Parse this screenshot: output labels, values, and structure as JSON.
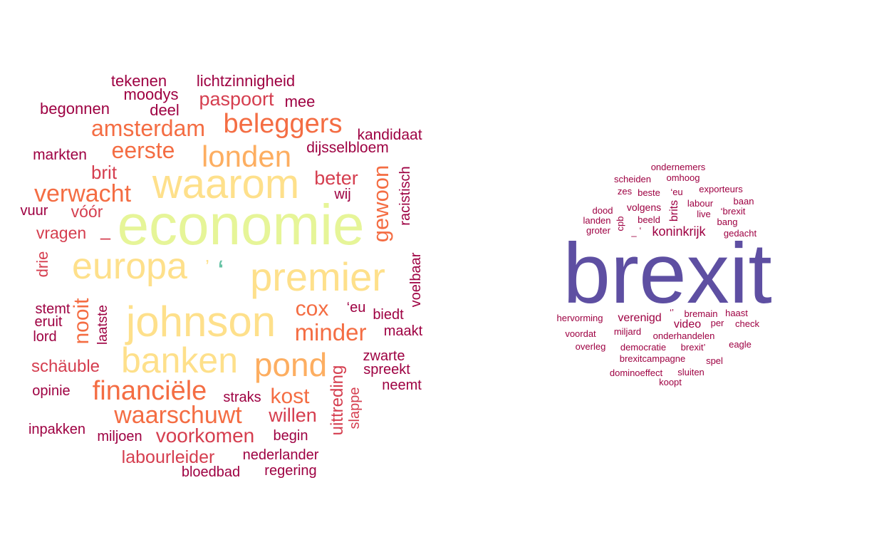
{
  "clouds": [
    {
      "name": "left-cloud",
      "words": [
        {
          "text": "economie",
          "color": "#e6f598"
        },
        {
          "text": "waarom",
          "color": "#fee08b"
        },
        {
          "text": "johnson",
          "color": "#fee08b"
        },
        {
          "text": "premier",
          "color": "#fee08b"
        },
        {
          "text": "banken",
          "color": "#fee08b"
        },
        {
          "text": "europa",
          "color": "#fee08b"
        },
        {
          "text": "pond",
          "color": "#fdae61"
        },
        {
          "text": "londen",
          "color": "#fdae61"
        },
        {
          "text": "beleggers",
          "color": "#f46d43"
        },
        {
          "text": "financiële",
          "color": "#f46d43"
        },
        {
          "text": "waarschuwt",
          "color": "#f46d43"
        },
        {
          "text": "amsterdam",
          "color": "#f46d43"
        },
        {
          "text": "eerste",
          "color": "#f46d43"
        },
        {
          "text": "verwacht",
          "color": "#f46d43"
        },
        {
          "text": "minder",
          "color": "#f46d43"
        },
        {
          "text": "gewoon",
          "color": "#f46d43"
        },
        {
          "text": "kost",
          "color": "#f46d43"
        },
        {
          "text": "cox",
          "color": "#f46d43"
        },
        {
          "text": "nooit",
          "color": "#f46d43"
        },
        {
          "text": "voorkomen",
          "color": "#d53e4f"
        },
        {
          "text": "beter",
          "color": "#d53e4f"
        },
        {
          "text": "willen",
          "color": "#d53e4f"
        },
        {
          "text": "paspoort",
          "color": "#d53e4f"
        },
        {
          "text": "brit",
          "color": "#d53e4f"
        },
        {
          "text": "labourleider",
          "color": "#d53e4f"
        },
        {
          "text": "uittreding",
          "color": "#d53e4f"
        },
        {
          "text": "schäuble",
          "color": "#d53e4f"
        },
        {
          "text": "vragen",
          "color": "#d53e4f"
        },
        {
          "text": "vóór",
          "color": "#d53e4f"
        },
        {
          "text": "drie",
          "color": "#d53e4f"
        },
        {
          "text": "slappe",
          "color": "#d53e4f"
        },
        {
          "text": "–",
          "color": "#d53e4f"
        },
        {
          "text": "‘",
          "color": "#66c2a5"
        },
        {
          "text": "’",
          "color": "#fee08b"
        },
        {
          "text": "lichtzinnigheid",
          "color": "#9e0142"
        },
        {
          "text": "tekenen",
          "color": "#9e0142"
        },
        {
          "text": "moodys",
          "color": "#9e0142"
        },
        {
          "text": "mee",
          "color": "#9e0142"
        },
        {
          "text": "begonnen",
          "color": "#9e0142"
        },
        {
          "text": "deel",
          "color": "#9e0142"
        },
        {
          "text": "kandidaat",
          "color": "#9e0142"
        },
        {
          "text": "dijsselbloem",
          "color": "#9e0142"
        },
        {
          "text": "markten",
          "color": "#9e0142"
        },
        {
          "text": "racistisch",
          "color": "#9e0142"
        },
        {
          "text": "wij",
          "color": "#9e0142"
        },
        {
          "text": "vuur",
          "color": "#9e0142"
        },
        {
          "text": "voelbaar",
          "color": "#9e0142"
        },
        {
          "text": "stemt",
          "color": "#9e0142"
        },
        {
          "text": "eruit",
          "color": "#9e0142"
        },
        {
          "text": "lord",
          "color": "#9e0142"
        },
        {
          "text": "laatste",
          "color": "#9e0142"
        },
        {
          "text": "‘eu",
          "color": "#9e0142"
        },
        {
          "text": "biedt",
          "color": "#9e0142"
        },
        {
          "text": "maakt",
          "color": "#9e0142"
        },
        {
          "text": "zwarte",
          "color": "#9e0142"
        },
        {
          "text": "spreekt",
          "color": "#9e0142"
        },
        {
          "text": "neemt",
          "color": "#9e0142"
        },
        {
          "text": "opinie",
          "color": "#9e0142"
        },
        {
          "text": "straks",
          "color": "#9e0142"
        },
        {
          "text": "inpakken",
          "color": "#9e0142"
        },
        {
          "text": "miljoen",
          "color": "#9e0142"
        },
        {
          "text": "begin",
          "color": "#9e0142"
        },
        {
          "text": "nederlander",
          "color": "#9e0142"
        },
        {
          "text": "bloedbad",
          "color": "#9e0142"
        },
        {
          "text": "regering",
          "color": "#9e0142"
        }
      ]
    },
    {
      "name": "right-cloud",
      "words": [
        {
          "text": "brexit",
          "color": "#5e4fa2"
        },
        {
          "text": "koninkrijk",
          "color": "#9e0142"
        },
        {
          "text": "verenigd",
          "color": "#9e0142"
        },
        {
          "text": "video",
          "color": "#9e0142"
        },
        {
          "text": "volgens",
          "color": "#9e0142"
        },
        {
          "text": "brits",
          "color": "#9e0142"
        },
        {
          "text": "ondernemers",
          "color": "#9e0142"
        },
        {
          "text": "scheiden",
          "color": "#9e0142"
        },
        {
          "text": "omhoog",
          "color": "#9e0142"
        },
        {
          "text": "zes",
          "color": "#9e0142"
        },
        {
          "text": "beste",
          "color": "#9e0142"
        },
        {
          "text": "‘eu",
          "color": "#9e0142"
        },
        {
          "text": "exporteurs",
          "color": "#9e0142"
        },
        {
          "text": "baan",
          "color": "#9e0142"
        },
        {
          "text": "dood",
          "color": "#9e0142"
        },
        {
          "text": "labour",
          "color": "#9e0142"
        },
        {
          "text": "‘brexit",
          "color": "#9e0142"
        },
        {
          "text": "landen",
          "color": "#9e0142"
        },
        {
          "text": "beeld",
          "color": "#9e0142"
        },
        {
          "text": "live",
          "color": "#9e0142"
        },
        {
          "text": "bang",
          "color": "#9e0142"
        },
        {
          "text": "groter",
          "color": "#9e0142"
        },
        {
          "text": "cpb",
          "color": "#9e0142"
        },
        {
          "text": "_",
          "color": "#9e0142"
        },
        {
          "text": "‘",
          "color": "#9e0142"
        },
        {
          "text": "gedacht",
          "color": "#9e0142"
        },
        {
          "text": "hervorming",
          "color": "#9e0142"
        },
        {
          "text": "‘’",
          "color": "#9e0142"
        },
        {
          "text": "bremain",
          "color": "#9e0142"
        },
        {
          "text": "haast",
          "color": "#9e0142"
        },
        {
          "text": "per",
          "color": "#9e0142"
        },
        {
          "text": "check",
          "color": "#9e0142"
        },
        {
          "text": "voordat",
          "color": "#9e0142"
        },
        {
          "text": "miljard",
          "color": "#9e0142"
        },
        {
          "text": "onderhandelen",
          "color": "#9e0142"
        },
        {
          "text": "overleg",
          "color": "#9e0142"
        },
        {
          "text": "democratie",
          "color": "#9e0142"
        },
        {
          "text": "brexit’",
          "color": "#9e0142"
        },
        {
          "text": "eagle",
          "color": "#9e0142"
        },
        {
          "text": "brexitcampagne",
          "color": "#9e0142"
        },
        {
          "text": "spel",
          "color": "#9e0142"
        },
        {
          "text": "dominoeffect",
          "color": "#9e0142"
        },
        {
          "text": "sluiten",
          "color": "#9e0142"
        },
        {
          "text": "koopt",
          "color": "#9e0142"
        }
      ]
    }
  ]
}
